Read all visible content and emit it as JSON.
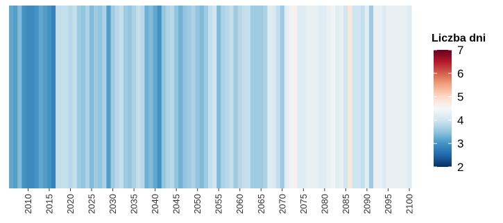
{
  "chart_data": {
    "type": "heatmap",
    "title": "",
    "xlabel": "",
    "ylabel": "",
    "x_start": 2006,
    "x_end": 2100,
    "xlim": [
      2006,
      2100
    ],
    "x_ticks": [
      2010,
      2015,
      2020,
      2025,
      2030,
      2035,
      2040,
      2045,
      2050,
      2055,
      2060,
      2065,
      2070,
      2075,
      2080,
      2085,
      2090,
      2095,
      2100
    ],
    "values": [
      3.2,
      3.1,
      3.4,
      3.0,
      2.9,
      2.9,
      3.0,
      3.2,
      3.1,
      3.0,
      2.8,
      3.9,
      3.9,
      3.9,
      3.8,
      3.9,
      3.6,
      3.5,
      3.7,
      3.4,
      3.6,
      3.5,
      3.7,
      3.1,
      3.6,
      3.8,
      3.9,
      3.6,
      3.5,
      3.7,
      3.9,
      3.8,
      3.3,
      3.4,
      3.2,
      3.0,
      3.5,
      3.7,
      3.8,
      3.5,
      3.3,
      3.5,
      3.6,
      3.7,
      3.5,
      3.4,
      3.6,
      3.9,
      4.0,
      3.4,
      3.7,
      3.8,
      3.9,
      3.6,
      3.8,
      3.9,
      3.9,
      3.6,
      3.6,
      3.6,
      3.7,
      4.2,
      4.1,
      3.9,
      3.6,
      4.2,
      4.4,
      4.6,
      4.2,
      4.2,
      4.3,
      4.3,
      4.3,
      4.2,
      4.2,
      4.3,
      4.4,
      4.2,
      4.3,
      4.0,
      4.8,
      4.0,
      4.0,
      3.9,
      4.2,
      3.6,
      4.3,
      4.3,
      4.2,
      4.3,
      4.3,
      4.3,
      4.3,
      4.3,
      4.2
    ],
    "legend": {
      "title": "Liczba dni",
      "position": "right",
      "min": 2,
      "max": 7,
      "labels": [
        "7",
        "6",
        "5",
        "4",
        "3",
        "2"
      ]
    },
    "colors": [
      "#053061",
      "#2166ac",
      "#4393c3",
      "#92c5de",
      "#d1e5f0",
      "#f7f7f7",
      "#fddbc7",
      "#f4a582",
      "#d6604d",
      "#b2182b",
      "#67001f"
    ],
    "grid": false
  }
}
